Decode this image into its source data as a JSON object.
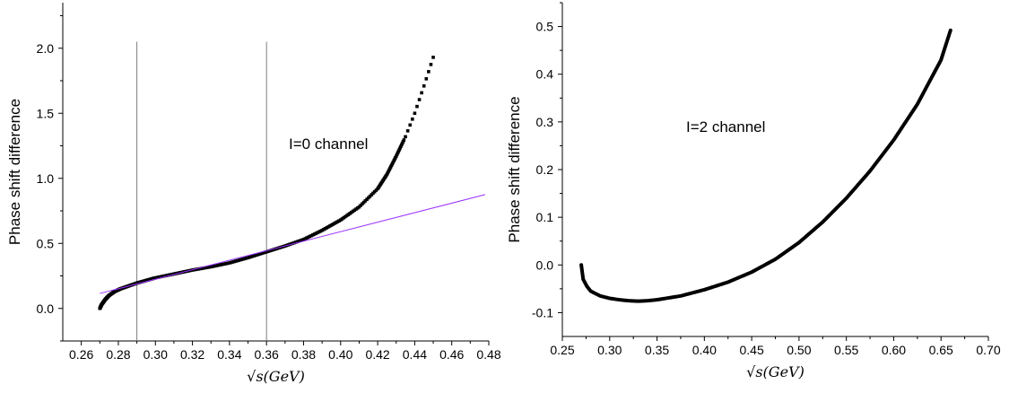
{
  "chart_data": [
    {
      "type": "scatter",
      "ylabel": "Phase shift difference",
      "xlabel": "√s(GeV)",
      "annotation": "I=0 channel",
      "xlim": [
        0.25,
        0.48
      ],
      "ylim": [
        -0.25,
        2.35
      ],
      "xticks": [
        0.26,
        0.28,
        0.3,
        0.32,
        0.34,
        0.36,
        0.38,
        0.4,
        0.42,
        0.44,
        0.46,
        0.48
      ],
      "xtick_labels": [
        "0.26",
        "0.28",
        "0.30",
        "0.32",
        "0.34",
        "0.36",
        "0.38",
        "0.40",
        "0.42",
        "0.44",
        "0.46",
        "0.48"
      ],
      "yticks": [
        0.0,
        0.5,
        1.0,
        1.5,
        2.0
      ],
      "ytick_labels": [
        "0.0",
        "0.5",
        "1.0",
        "1.5",
        "2.0"
      ],
      "vertical_lines": [
        0.29,
        0.36
      ],
      "series": [
        {
          "color": "#000000",
          "x": [
            0.27,
            0.271,
            0.273,
            0.275,
            0.278,
            0.281,
            0.285,
            0.29,
            0.295,
            0.3,
            0.31,
            0.32,
            0.33,
            0.34,
            0.35,
            0.36,
            0.37,
            0.38,
            0.39,
            0.4,
            0.41,
            0.42,
            0.425,
            0.43,
            0.435,
            0.44,
            0.445,
            0.45
          ],
          "y": [
            0.0,
            0.03,
            0.07,
            0.1,
            0.13,
            0.15,
            0.17,
            0.195,
            0.215,
            0.235,
            0.265,
            0.295,
            0.32,
            0.35,
            0.39,
            0.435,
            0.48,
            0.53,
            0.6,
            0.68,
            0.78,
            0.92,
            1.03,
            1.17,
            1.32,
            1.5,
            1.71,
            1.93
          ]
        },
        {
          "color": "#9b30ff",
          "x": [
            0.27,
            0.478
          ],
          "y": [
            0.115,
            0.875
          ]
        }
      ]
    },
    {
      "type": "line",
      "ylabel": "Phase shift difference",
      "xlabel": "√s(GeV)",
      "annotation": "I=2 channel",
      "xlim": [
        0.25,
        0.7
      ],
      "ylim": [
        -0.15,
        0.55
      ],
      "xticks": [
        0.25,
        0.3,
        0.35,
        0.4,
        0.45,
        0.5,
        0.55,
        0.6,
        0.65,
        0.7
      ],
      "xtick_labels": [
        "0.25",
        "0.30",
        "0.35",
        "0.40",
        "0.45",
        "0.50",
        "0.55",
        "0.60",
        "0.65",
        "0.70"
      ],
      "yticks": [
        -0.1,
        0.0,
        0.1,
        0.2,
        0.3,
        0.4,
        0.5
      ],
      "ytick_labels": [
        "-0.1",
        "0.0",
        "0.1",
        "0.2",
        "0.3",
        "0.4",
        "0.5"
      ],
      "series": [
        {
          "color": "#000000",
          "x": [
            0.27,
            0.272,
            0.276,
            0.28,
            0.29,
            0.3,
            0.31,
            0.32,
            0.33,
            0.34,
            0.35,
            0.375,
            0.4,
            0.425,
            0.45,
            0.475,
            0.5,
            0.525,
            0.55,
            0.575,
            0.6,
            0.625,
            0.65,
            0.66
          ],
          "y": [
            0.0,
            -0.03,
            -0.045,
            -0.055,
            -0.065,
            -0.07,
            -0.073,
            -0.075,
            -0.076,
            -0.075,
            -0.073,
            -0.065,
            -0.052,
            -0.036,
            -0.015,
            0.012,
            0.047,
            0.09,
            0.14,
            0.197,
            0.262,
            0.337,
            0.43,
            0.492
          ]
        }
      ]
    }
  ]
}
